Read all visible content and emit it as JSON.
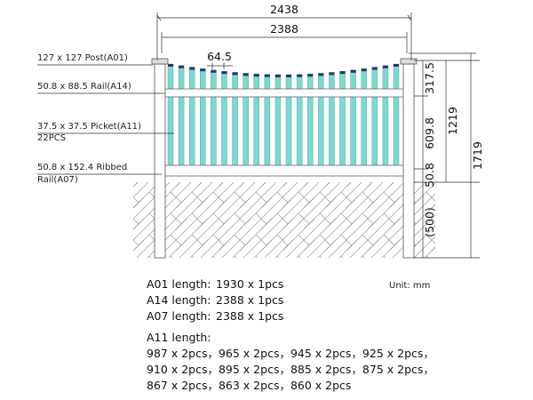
{
  "dimensions": {
    "overall_width": "2438",
    "rail_width": "2388",
    "picket_spacing": "64.5",
    "top_height": "317.5",
    "picket_height": "609.8",
    "above_ground": "1219",
    "total_height": "1719",
    "bottom_rail": "50.8",
    "burial": "(500)"
  },
  "parts": {
    "post": "127 x 127 Post(A01)",
    "top_rail": "50.8 x 88.5 Rail(A14)",
    "picket": "37.5 x 37.5 Picket(A11)",
    "picket_count": "22PCS",
    "bottom_rail_1": "50.8 x 152.4 Ribbed",
    "bottom_rail_2": "Rail(A07)"
  },
  "unit": "Unit: mm",
  "lengths": [
    {
      "label": "A01 length:",
      "value": "1930 x 1pcs"
    },
    {
      "label": "A14 length:",
      "value": "2388 x 1pcs"
    },
    {
      "label": "A07 length:",
      "value": "2388 x 1pcs"
    }
  ],
  "picket_lengths": {
    "label": "A11 length:",
    "lines": [
      "987 x 2pcs，965 x 2pcs，945 x 2pcs，925 x 2pcs，",
      "910 x 2pcs，895 x 2pcs，885 x 2pcs，875 x 2pcs，",
      "867 x 2pcs，863 x 2pcs，860 x 2pcs"
    ]
  }
}
